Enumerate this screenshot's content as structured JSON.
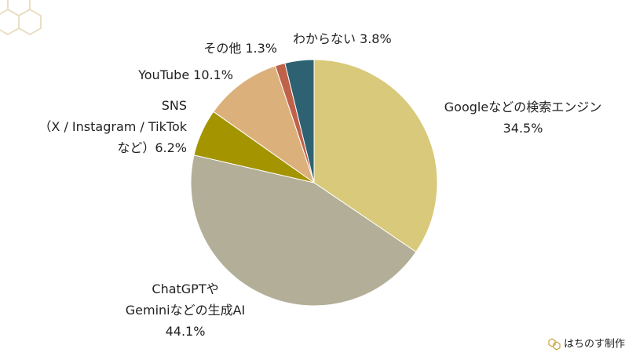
{
  "chart_data": {
    "type": "pie",
    "categories": [
      [
        "Googleなどの検索エンジン"
      ],
      [
        "ChatGPTや",
        "Geminiなどの生成AI"
      ],
      [
        "SNS",
        "（X / Instagram / TikTok",
        "など）"
      ],
      [
        "YouTube"
      ],
      [
        "その他"
      ],
      [
        "わからない"
      ]
    ],
    "values": [
      34.5,
      44.1,
      6.2,
      10.1,
      1.3,
      3.8
    ],
    "value_labels": [
      "34.5%",
      "44.1%",
      "6.2%",
      "10.1%",
      "1.3%",
      "3.8%"
    ],
    "colors": [
      "#d9c97a",
      "#b3ae98",
      "#a39400",
      "#dcb07a",
      "#c0614a",
      "#2e6272"
    ]
  },
  "watermark": "はちのす制作"
}
